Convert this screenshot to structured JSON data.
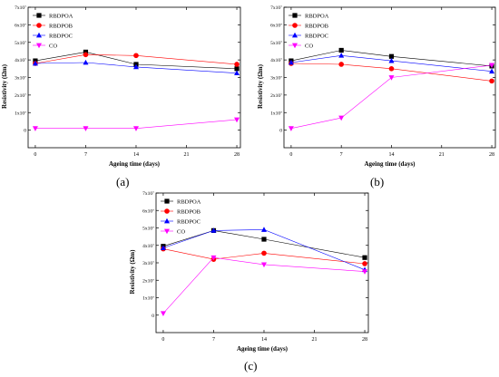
{
  "chart_data": [
    {
      "type": "line",
      "panel_label": "(a)",
      "xlabel": "Ageing time (days)",
      "ylabel": "Resistivity (Ωm)",
      "xlim": [
        -1,
        28.5
      ],
      "ylim": [
        -1,
        7
      ],
      "x_ticks": [
        0,
        7,
        14,
        21,
        28
      ],
      "y_ticks": [
        0,
        1,
        2,
        3,
        4,
        5,
        6,
        7
      ],
      "y_tick_labels": [
        "0",
        "1x10⁷",
        "2x10⁷",
        "3x10⁷",
        "4x10⁷",
        "5x10⁷",
        "6x10⁷",
        "7x10⁷"
      ],
      "legend_position": "top-left",
      "series": [
        {
          "name": "RBDPOA",
          "marker": "square",
          "color": "#000000",
          "x": [
            0,
            7,
            14,
            28
          ],
          "y": [
            3.95,
            4.45,
            3.75,
            3.5
          ]
        },
        {
          "name": "RBDPOB",
          "marker": "circle",
          "color": "#ff0000",
          "x": [
            0,
            7,
            14,
            28
          ],
          "y": [
            3.8,
            4.3,
            4.25,
            3.75
          ]
        },
        {
          "name": "RBDPOC",
          "marker": "triangle-up",
          "color": "#0000ff",
          "x": [
            0,
            7,
            14,
            28
          ],
          "y": [
            3.8,
            3.85,
            3.6,
            3.25
          ]
        },
        {
          "name": "CO",
          "marker": "triangle-down",
          "color": "#ff00ff",
          "x": [
            0,
            7,
            14,
            28
          ],
          "y": [
            0.1,
            0.1,
            0.1,
            0.6
          ]
        }
      ]
    },
    {
      "type": "line",
      "panel_label": "(b)",
      "xlabel": "Ageing time (days)",
      "ylabel": "Resistivity (Ωm)",
      "xlim": [
        -1,
        28.5
      ],
      "ylim": [
        -1,
        7
      ],
      "x_ticks": [
        0,
        7,
        14,
        21,
        28
      ],
      "y_ticks": [
        0,
        1,
        2,
        3,
        4,
        5,
        6,
        7
      ],
      "y_tick_labels": [
        "0",
        "1x10⁷",
        "2x10⁷",
        "3x10⁷",
        "4x10⁷",
        "5x10⁷",
        "6x10⁷",
        "7x10⁷"
      ],
      "legend_position": "top-left",
      "series": [
        {
          "name": "RBDPOA",
          "marker": "square",
          "color": "#000000",
          "x": [
            0,
            7,
            14,
            28
          ],
          "y": [
            3.95,
            4.55,
            4.2,
            3.65
          ]
        },
        {
          "name": "RBDPOB",
          "marker": "circle",
          "color": "#ff0000",
          "x": [
            0,
            7,
            14,
            28
          ],
          "y": [
            3.8,
            3.75,
            3.5,
            2.8
          ]
        },
        {
          "name": "RBDPOC",
          "marker": "triangle-up",
          "color": "#0000ff",
          "x": [
            0,
            7,
            14,
            28
          ],
          "y": [
            3.85,
            4.25,
            3.95,
            3.35
          ]
        },
        {
          "name": "CO",
          "marker": "triangle-down",
          "color": "#ff00ff",
          "x": [
            0,
            7,
            14,
            28
          ],
          "y": [
            0.1,
            0.7,
            3.0,
            3.7
          ]
        }
      ]
    },
    {
      "type": "line",
      "panel_label": "(c)",
      "xlabel": "Ageing time (days)",
      "ylabel": "Resistivity (Ωm)",
      "xlim": [
        -1,
        28.5
      ],
      "ylim": [
        -1,
        7
      ],
      "x_ticks": [
        0,
        7,
        14,
        21,
        28
      ],
      "y_ticks": [
        0,
        1,
        2,
        3,
        4,
        5,
        6,
        7
      ],
      "y_tick_labels": [
        "0",
        "1x10⁷",
        "2x10⁷",
        "3x10⁷",
        "4x10⁷",
        "5x10⁷",
        "6x10⁷",
        "7x10⁷"
      ],
      "legend_position": "top-left",
      "series": [
        {
          "name": "RBDPOA",
          "marker": "square",
          "color": "#000000",
          "x": [
            0,
            7,
            14,
            28
          ],
          "y": [
            3.95,
            4.85,
            4.35,
            3.3
          ]
        },
        {
          "name": "RBDPOB",
          "marker": "circle",
          "color": "#ff0000",
          "x": [
            0,
            7,
            14,
            28
          ],
          "y": [
            3.8,
            3.2,
            3.55,
            2.95
          ]
        },
        {
          "name": "RBDPOC",
          "marker": "triangle-up",
          "color": "#0000ff",
          "x": [
            0,
            7,
            14,
            28
          ],
          "y": [
            3.85,
            4.85,
            4.9,
            2.6
          ]
        },
        {
          "name": "CO",
          "marker": "triangle-down",
          "color": "#ff00ff",
          "x": [
            0,
            7,
            14,
            28
          ],
          "y": [
            0.1,
            3.3,
            2.9,
            2.5
          ]
        }
      ]
    }
  ]
}
